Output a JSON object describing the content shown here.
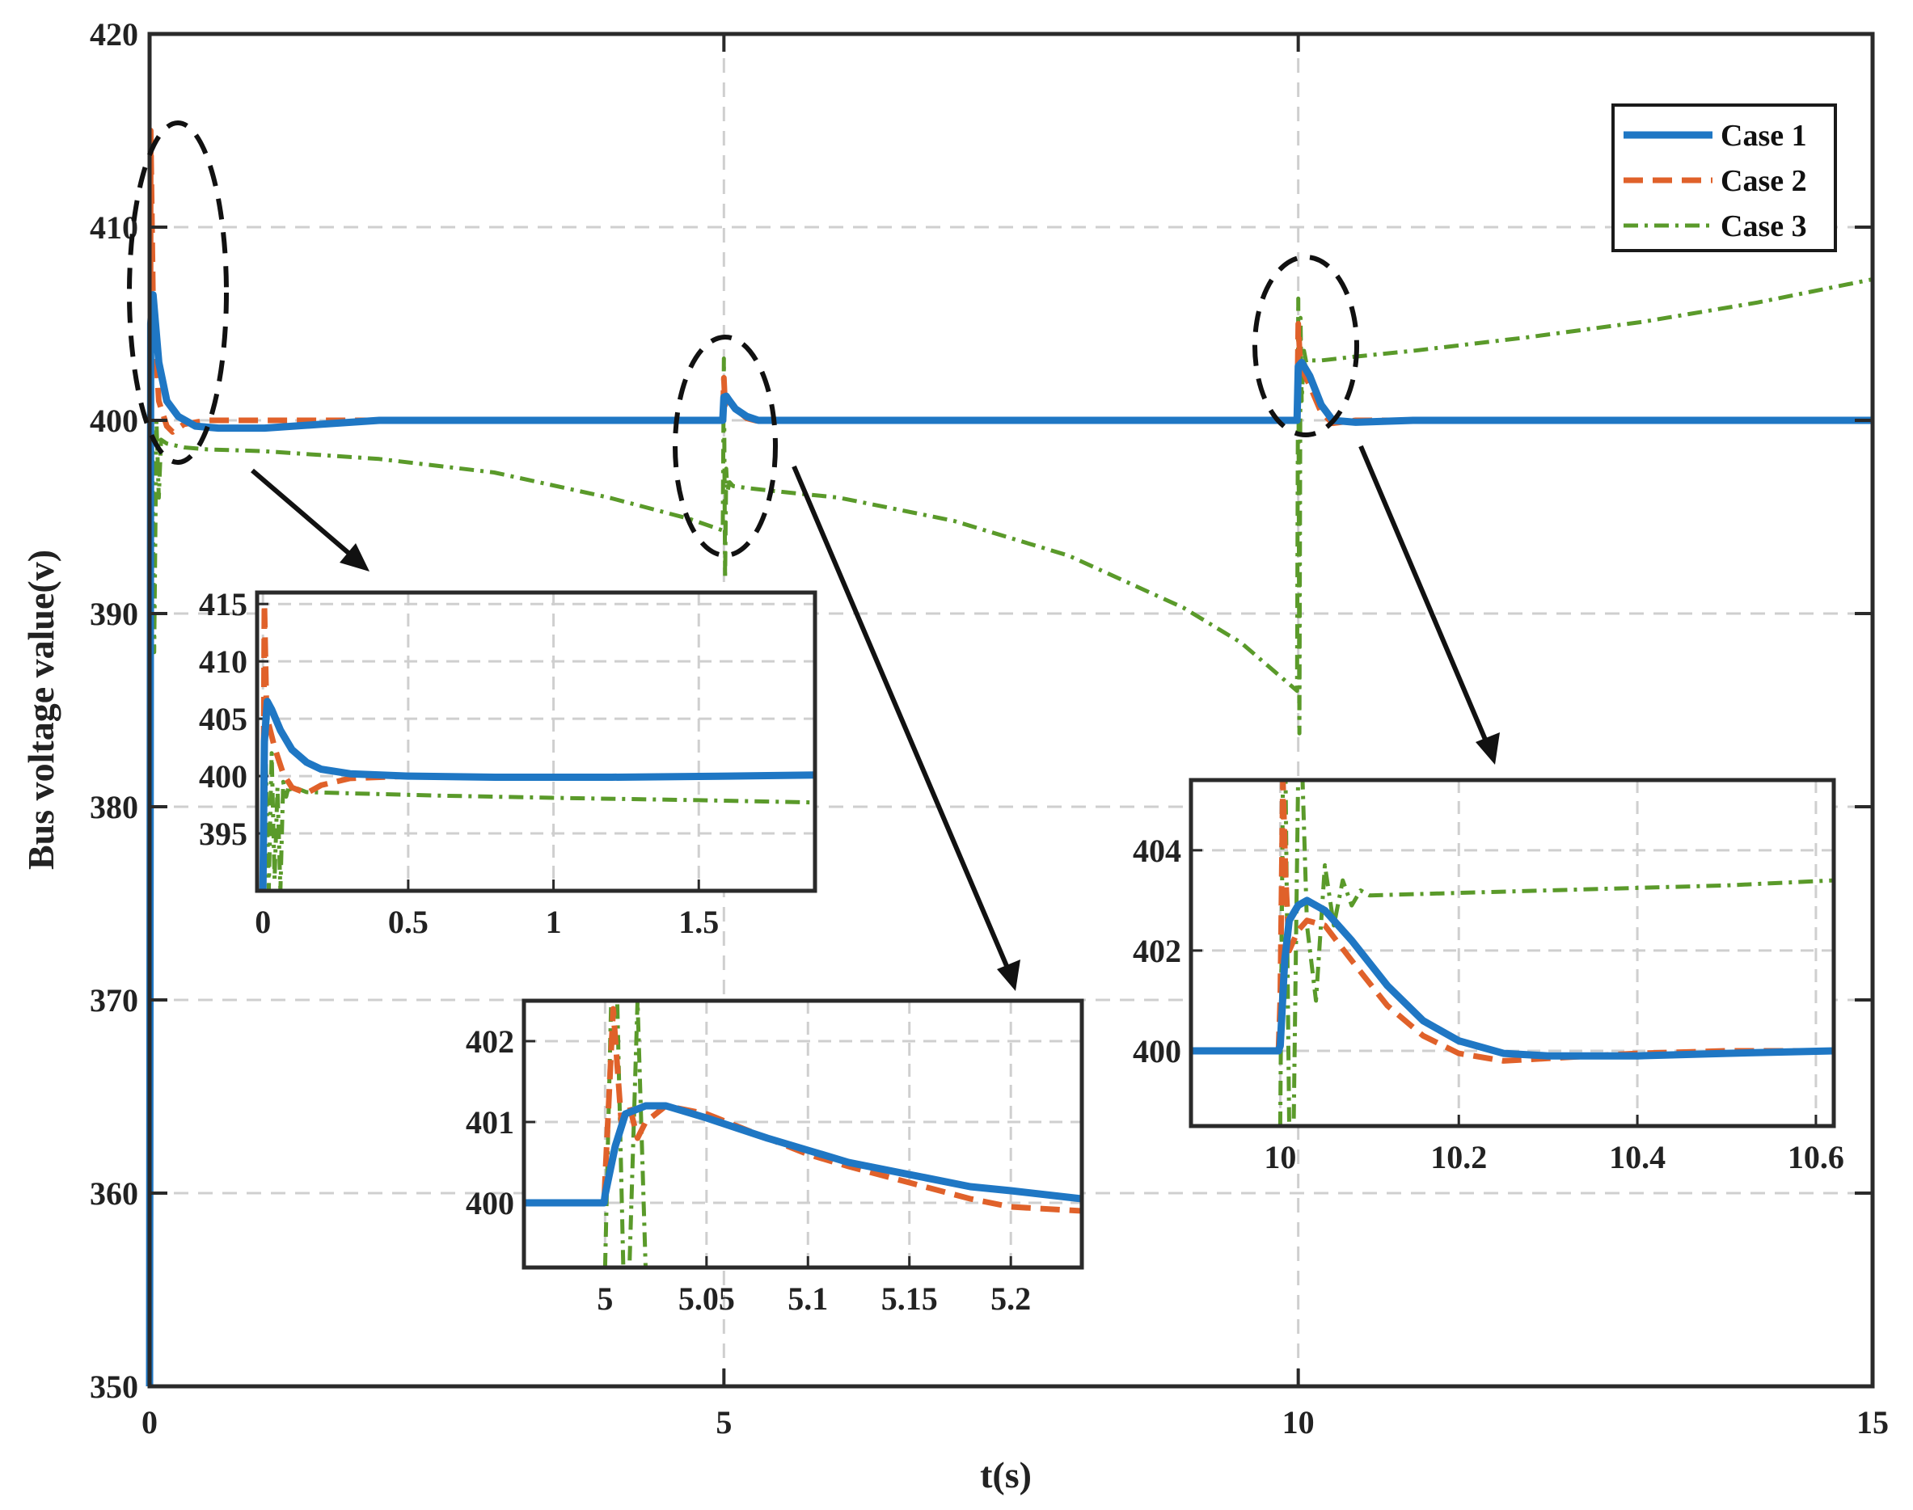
{
  "colors": {
    "case1": "#1f77c4",
    "case2": "#e0612a",
    "case3": "#5a9a2a",
    "grid": "#cfcfcf",
    "frame": "#2a2a2a"
  },
  "chart_data": {
    "type": "line",
    "xlabel": "t(s)",
    "ylabel": "Bus voltage value(v)",
    "xlim": [
      0,
      15
    ],
    "ylim": [
      350,
      420
    ],
    "xticks": [
      "0",
      "5",
      "10",
      "15"
    ],
    "yticks": [
      "350",
      "360",
      "370",
      "380",
      "390",
      "400",
      "410",
      "420"
    ],
    "grid": true,
    "legend_placement": "top-right",
    "legend": [
      "Case 1",
      "Case 2",
      "Case 3"
    ],
    "series": [
      {
        "name": "Case 1",
        "x": [
          0,
          0.01,
          0.03,
          0.08,
          0.15,
          0.25,
          0.4,
          0.6,
          1.0,
          1.5,
          2,
          3,
          4,
          4.99,
          5.0,
          5.02,
          5.05,
          5.1,
          5.2,
          5.3,
          5.5,
          6,
          7,
          8,
          9,
          9.99,
          10.0,
          10.03,
          10.1,
          10.2,
          10.3,
          10.5,
          11,
          12,
          13,
          14,
          15
        ],
        "y": [
          350,
          405,
          406.5,
          403,
          401,
          400.2,
          399.7,
          399.6,
          399.6,
          399.8,
          400,
          400,
          400,
          400,
          401.2,
          401.25,
          401.0,
          400.6,
          400.2,
          400.0,
          400,
          400,
          400,
          400,
          400,
          400,
          402.8,
          403.0,
          402.3,
          400.8,
          400.0,
          399.9,
          400,
          400,
          400,
          400,
          400
        ]
      },
      {
        "name": "Case 2",
        "x": [
          0,
          0.01,
          0.03,
          0.08,
          0.15,
          0.2,
          0.3,
          0.5,
          0.8,
          1.2,
          2,
          3,
          4,
          4.99,
          5.0,
          5.01,
          5.03,
          5.05,
          5.1,
          5.2,
          5.3,
          5.5,
          6,
          7,
          8,
          9,
          9.99,
          10.0,
          10.02,
          10.05,
          10.1,
          10.2,
          10.3,
          10.5,
          11,
          12,
          13,
          14,
          15
        ],
        "y": [
          350,
          415,
          406,
          401,
          399.7,
          399.4,
          399.8,
          400,
          400,
          400,
          400,
          400,
          400,
          400,
          402.2,
          400.8,
          401.2,
          401.0,
          400.6,
          400.1,
          399.95,
          400,
          400,
          400,
          400,
          400,
          400,
          405,
          402.6,
          402.4,
          401.8,
          400.4,
          399.85,
          400,
          400,
          400,
          400,
          400,
          400
        ]
      },
      {
        "name": "Case 3",
        "x": [
          0,
          0.02,
          0.04,
          0.06,
          0.08,
          0.1,
          0.15,
          0.3,
          0.5,
          1,
          2,
          3,
          4,
          4.7,
          4.99,
          5.0,
          5.01,
          5.02,
          5.03,
          5.05,
          5.08,
          5.2,
          5.5,
          6,
          7,
          8,
          9,
          9.5,
          9.99,
          10.0,
          10.01,
          10.02,
          10.03,
          10.05,
          10.07,
          10.1,
          10.2,
          10.5,
          11,
          12,
          13,
          14,
          15
        ],
        "y": [
          350,
          401,
          388,
          400,
          396,
          399,
          398.8,
          398.6,
          398.5,
          398.4,
          398.0,
          397.3,
          396.0,
          394.9,
          394.3,
          403.2,
          391.8,
          397.5,
          396.3,
          396.8,
          396.6,
          396.5,
          396.3,
          396.0,
          394.8,
          393.0,
          390.3,
          388.5,
          386.0,
          406.3,
          383.8,
          405.3,
          401.0,
          403.6,
          403.0,
          403.1,
          403.1,
          403.3,
          403.6,
          404.3,
          405.1,
          406.1,
          407.3
        ]
      }
    ],
    "insets": [
      {
        "xlim": [
          -0.02,
          1.9
        ],
        "ylim": [
          390,
          416
        ],
        "xticks": [
          "0",
          "0.5",
          "1",
          "1.5"
        ],
        "yticks": [
          "395",
          "400",
          "405",
          "410",
          "415"
        ],
        "grid": true,
        "series": [
          {
            "name": "Case 1",
            "x": [
              0,
              0.005,
              0.015,
              0.03,
              0.06,
              0.1,
              0.15,
              0.2,
              0.3,
              0.5,
              0.8,
              1.2,
              1.6,
              1.9
            ],
            "y": [
              390,
              403,
              406.5,
              405.8,
              404,
              402.3,
              401.2,
              400.6,
              400.2,
              400.0,
              399.9,
              399.9,
              400.0,
              400.1
            ]
          },
          {
            "name": "Case 2",
            "x": [
              0,
              0.005,
              0.012,
              0.02,
              0.04,
              0.07,
              0.1,
              0.15,
              0.2,
              0.3,
              0.5,
              0.8,
              1.2,
              1.6,
              1.9
            ],
            "y": [
              390,
              415,
              406,
              404.5,
              402.5,
              400.2,
              399.0,
              398.5,
              399.2,
              399.8,
              400.0,
              399.9,
              399.9,
              400.0,
              400.1
            ]
          },
          {
            "name": "Case 3",
            "x": [
              0,
              0.01,
              0.02,
              0.03,
              0.04,
              0.05,
              0.06,
              0.07,
              0.08,
              0.09,
              0.1,
              0.12,
              0.15,
              0.3,
              0.6,
              1.0,
              1.5,
              1.9
            ],
            "y": [
              390,
              401,
              390,
              402,
              391,
              399,
              390,
              399.5,
              398.2,
              399.2,
              398.5,
              398.9,
              398.6,
              398.5,
              398.3,
              398.1,
              397.9,
              397.7
            ]
          }
        ]
      },
      {
        "xlim": [
          4.96,
          5.235
        ],
        "ylim": [
          399.2,
          402.5
        ],
        "xticks": [
          "5",
          "5.05",
          "5.1",
          "5.15",
          "5.2"
        ],
        "yticks": [
          "400",
          "401",
          "402"
        ],
        "grid": true,
        "series": [
          {
            "name": "Case 1",
            "x": [
              4.96,
              4.9995,
              5.0,
              5.005,
              5.01,
              5.02,
              5.03,
              5.05,
              5.08,
              5.1,
              5.12,
              5.15,
              5.18,
              5.2,
              5.235
            ],
            "y": [
              400,
              400,
              400.1,
              400.7,
              401.1,
              401.2,
              401.2,
              401.05,
              400.8,
              400.65,
              400.5,
              400.35,
              400.2,
              400.15,
              400.05
            ]
          },
          {
            "name": "Case 2",
            "x": [
              4.96,
              4.9995,
              5.0,
              5.004,
              5.008,
              5.012,
              5.016,
              5.02,
              5.03,
              5.05,
              5.08,
              5.1,
              5.12,
              5.15,
              5.18,
              5.2,
              5.235
            ],
            "y": [
              400,
              400,
              400.3,
              402.4,
              401.0,
              401.2,
              400.8,
              401.0,
              401.2,
              401.1,
              400.8,
              400.6,
              400.45,
              400.25,
              400.05,
              399.95,
              399.9
            ]
          },
          {
            "name": "Case 3",
            "x": [
              5.0,
              5.003,
              5.006,
              5.009,
              5.012,
              5.016,
              5.02
            ],
            "y": [
              399.2,
              402.5,
              402.5,
              399.2,
              399.2,
              402.5,
              399.2
            ]
          }
        ]
      },
      {
        "xlim": [
          9.9,
          10.62
        ],
        "ylim": [
          398.5,
          405.4
        ],
        "xticks": [
          "10",
          "10.2",
          "10.4",
          "10.6"
        ],
        "yticks": [
          "400",
          "402",
          "404"
        ],
        "grid": true,
        "series": [
          {
            "name": "Case 1",
            "x": [
              9.9,
              9.998,
              10.0,
              10.005,
              10.01,
              10.02,
              10.03,
              10.05,
              10.08,
              10.12,
              10.16,
              10.2,
              10.25,
              10.3,
              10.4,
              10.5,
              10.62
            ],
            "y": [
              400,
              400,
              400.1,
              401.8,
              402.6,
              402.9,
              403.0,
              402.8,
              402.2,
              401.3,
              400.6,
              400.2,
              399.95,
              399.9,
              399.9,
              399.95,
              400.0
            ]
          },
          {
            "name": "Case 2",
            "x": [
              9.9,
              9.998,
              10.0,
              10.003,
              10.006,
              10.01,
              10.02,
              10.03,
              10.05,
              10.08,
              10.12,
              10.16,
              10.2,
              10.25,
              10.3,
              10.4,
              10.5,
              10.62
            ],
            "y": [
              400,
              400,
              401,
              405.4,
              403.5,
              402.0,
              402.4,
              402.6,
              402.5,
              401.8,
              400.9,
              400.3,
              399.95,
              399.8,
              399.85,
              399.95,
              400.0,
              400.0
            ]
          },
          {
            "name": "Case 3",
            "x": [
              10.0,
              10.003,
              10.006,
              10.01,
              10.015,
              10.02,
              10.025,
              10.03,
              10.04,
              10.05,
              10.06,
              10.07,
              10.08,
              10.09,
              10.1,
              10.2,
              10.3,
              10.4,
              10.5,
              10.62
            ],
            "y": [
              398.5,
              405.4,
              405.4,
              398.5,
              398.5,
              405.4,
              405.4,
              402.5,
              401.0,
              403.7,
              402.5,
              403.4,
              402.9,
              403.2,
              403.1,
              403.15,
              403.2,
              403.25,
              403.3,
              403.4
            ]
          }
        ]
      }
    ]
  }
}
